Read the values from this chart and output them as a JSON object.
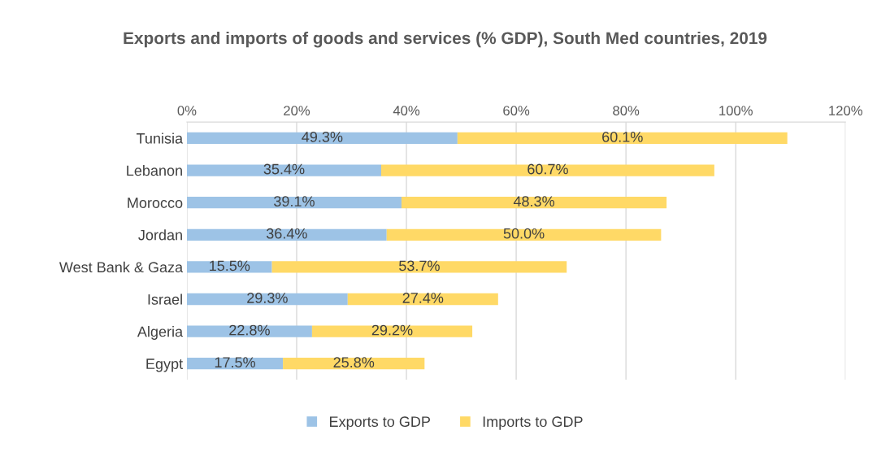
{
  "chart_data": {
    "type": "bar",
    "orientation": "horizontal",
    "stacked": true,
    "title": "Exports and imports of goods and services (% GDP), South Med countries, 2019",
    "categories": [
      "Tunisia",
      "Lebanon",
      "Morocco",
      "Jordan",
      "West Bank & Gaza",
      "Israel",
      "Algeria",
      "Egypt"
    ],
    "series": [
      {
        "name": "Exports to GDP",
        "color": "#9dc3e6",
        "values": [
          49.3,
          35.4,
          39.1,
          36.4,
          15.5,
          29.3,
          22.8,
          17.5
        ],
        "value_labels": [
          "49.3%",
          "35.4%",
          "39.1%",
          "36.4%",
          "15.5%",
          "29.3%",
          "22.8%",
          "17.5%"
        ]
      },
      {
        "name": "Imports to GDP",
        "color": "#ffd966",
        "values": [
          60.1,
          60.7,
          48.3,
          50.0,
          53.7,
          27.4,
          29.2,
          25.8
        ],
        "value_labels": [
          "60.1%",
          "60.7%",
          "48.3%",
          "50.0%",
          "53.7%",
          "27.4%",
          "29.2%",
          "25.8%"
        ]
      }
    ],
    "xlim": [
      0,
      120
    ],
    "xticks": [
      {
        "value": 0,
        "label": "0%"
      },
      {
        "value": 20,
        "label": "20%"
      },
      {
        "value": 40,
        "label": "40%"
      },
      {
        "value": 60,
        "label": "60%"
      },
      {
        "value": 80,
        "label": "80%"
      },
      {
        "value": 100,
        "label": "100%"
      },
      {
        "value": 120,
        "label": "120%"
      }
    ],
    "grid": "x",
    "legend": "bottom"
  }
}
